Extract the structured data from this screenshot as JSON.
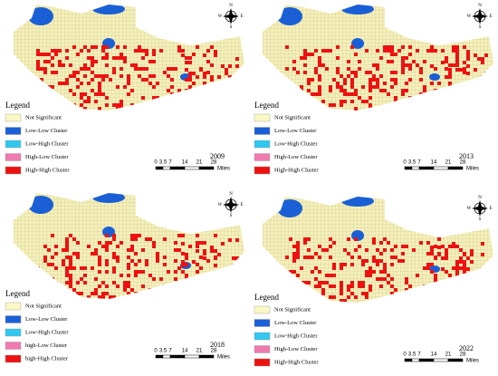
{
  "panels": [
    {
      "year": "2009",
      "legend": {
        "title": "Legend",
        "items": [
          "Not Significant",
          "Low-Low Cluster",
          "Low-High Cluster",
          "High-Low Cluster",
          "High-High Cluster"
        ]
      },
      "scale": {
        "ticks": [
          "0",
          "3.5",
          "7",
          "14",
          "21",
          "28"
        ],
        "unit": "Miles"
      },
      "compass": [
        "N",
        "E",
        "S",
        "W"
      ]
    },
    {
      "year": "2013",
      "legend": {
        "title": "Legend",
        "items": [
          "Not Significant",
          "Low-Low Cluster",
          "Low-High Cluster",
          "High-Low Cluster",
          "High-High Cluster"
        ]
      },
      "scale": {
        "ticks": [
          "0",
          "3.5",
          "7",
          "14",
          "21",
          "28"
        ],
        "unit": "Miles"
      },
      "compass": [
        "N",
        "E",
        "S",
        "W"
      ]
    },
    {
      "year": "2018",
      "legend": {
        "title": "Legend",
        "items": [
          "Not Significant",
          "Low-Low Cluster",
          "Low-High Cluster",
          "high-Low Cluster",
          "high-High Cluster"
        ]
      },
      "scale": {
        "ticks": [
          "0",
          "3.5",
          "7",
          "14",
          "21",
          "28"
        ],
        "unit": "Miles"
      },
      "compass": [
        "N",
        "E",
        "S",
        "W"
      ]
    },
    {
      "year": "2022",
      "legend": {
        "title": "Legend",
        "items": [
          "Not Significant",
          "Low-Low Cluster",
          "Low-High Cluster",
          "High-Low Cluster",
          "High-High Cluster"
        ]
      },
      "scale": {
        "ticks": [
          "0",
          "3.5",
          "7",
          "14",
          "21",
          "28"
        ],
        "unit": "Miles"
      },
      "compass": [
        "N",
        "E",
        "S",
        "W"
      ]
    }
  ]
}
